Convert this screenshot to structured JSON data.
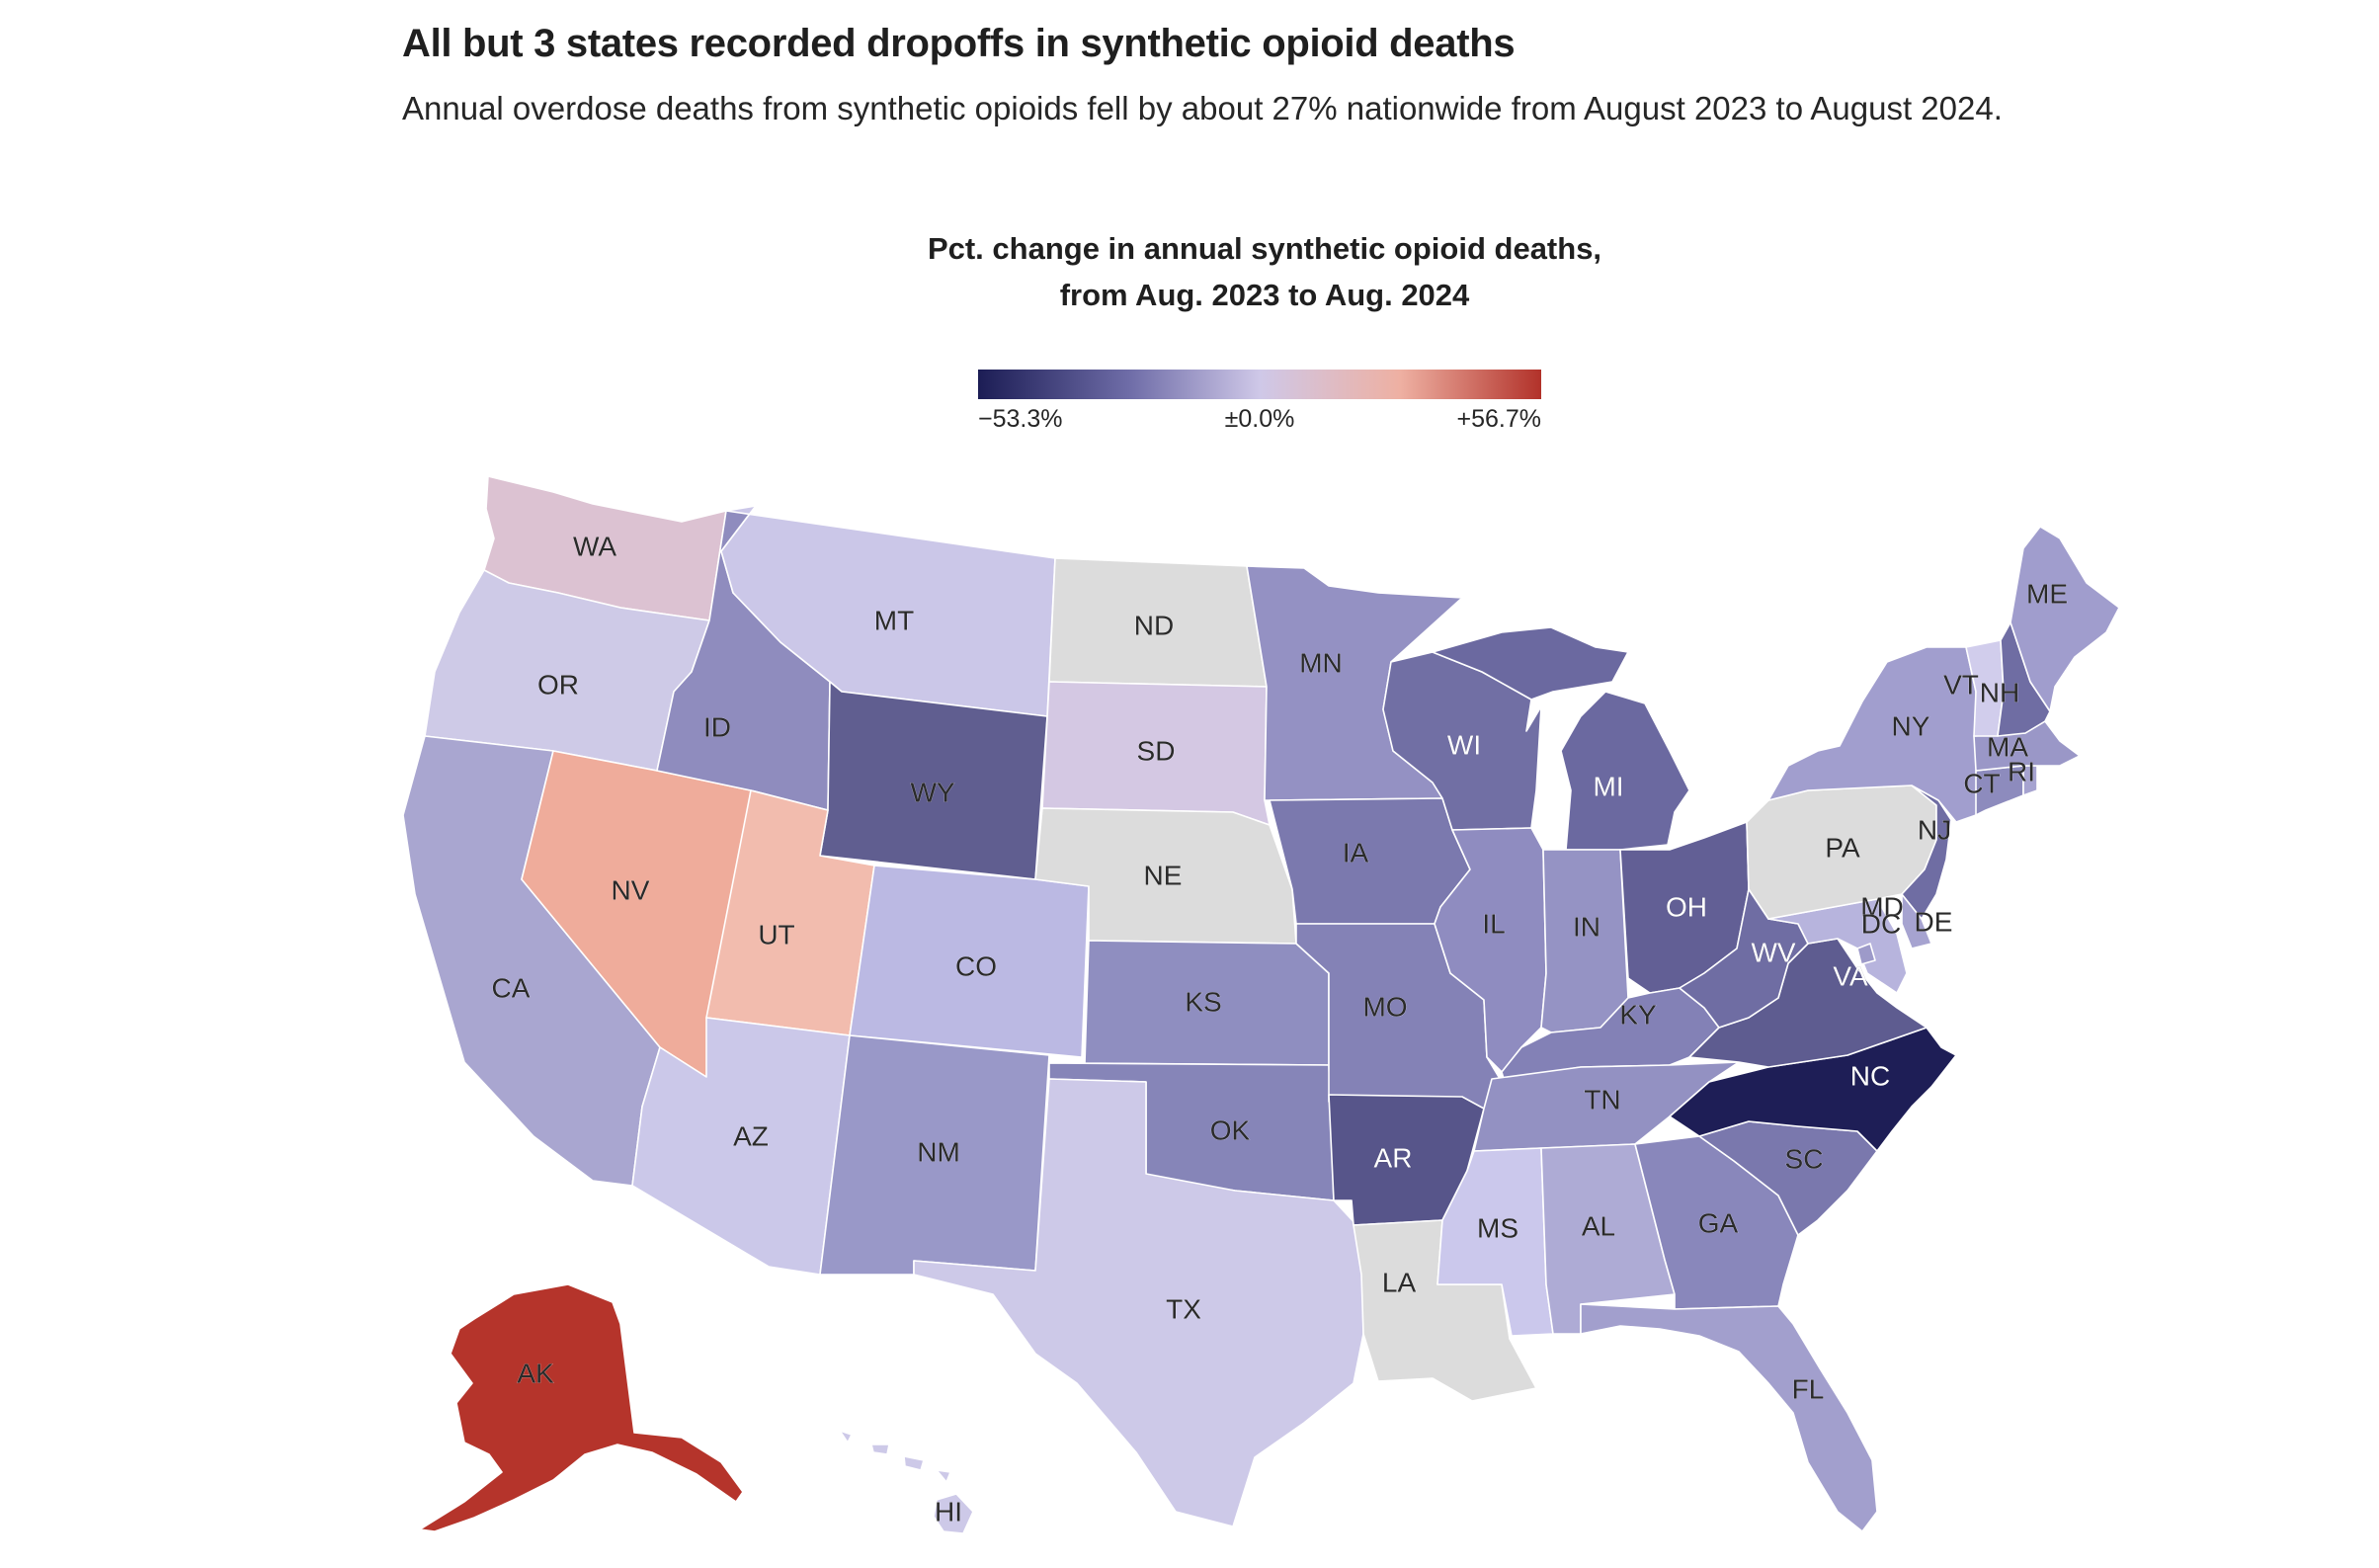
{
  "header": {
    "title": "All but 3 states recorded dropoffs in synthetic opioid deaths",
    "subtitle": "Annual overdose deaths from synthetic opioids fell by about 27% nationwide from August 2023 to August 2024."
  },
  "legend": {
    "title": "Pct. change in annual synthetic opioid deaths, from Aug. 2023 to Aug. 2024",
    "min_label": "−53.3%",
    "mid_label": "±0.0%",
    "max_label": "+56.7%",
    "scale_min": -53.3,
    "scale_max": 56.7,
    "colors": {
      "low": "#1c1d55",
      "mid": "#cfc8e8",
      "high": "#b2322a",
      "no_data": "#dcdcdc"
    }
  },
  "states": [
    {
      "id": "WA",
      "label": "WA",
      "color": "#dcc2d2"
    },
    {
      "id": "OR",
      "label": "OR",
      "color": "#cecae7"
    },
    {
      "id": "CA",
      "label": "CA",
      "color": "#a9a6d0"
    },
    {
      "id": "NV",
      "label": "NV",
      "color": "#efac9b"
    },
    {
      "id": "ID",
      "label": "ID",
      "color": "#8f8cbe"
    },
    {
      "id": "MT",
      "label": "MT",
      "color": "#cbc7e8"
    },
    {
      "id": "WY",
      "label": "WY",
      "color": "#605e90"
    },
    {
      "id": "UT",
      "label": "UT",
      "color": "#f2bcae"
    },
    {
      "id": "AZ",
      "label": "AZ",
      "color": "#cbc8e9"
    },
    {
      "id": "CO",
      "label": "CO",
      "color": "#bbb9e3"
    },
    {
      "id": "NM",
      "label": "NM",
      "color": "#9998c8"
    },
    {
      "id": "ND",
      "label": "ND",
      "color": "#dcdcdc"
    },
    {
      "id": "SD",
      "label": "SD",
      "color": "#d4c8e3"
    },
    {
      "id": "NE",
      "label": "NE",
      "color": "#dcdcdc"
    },
    {
      "id": "KS",
      "label": "KS",
      "color": "#8f8ec0"
    },
    {
      "id": "OK",
      "label": "OK",
      "color": "#8685b8"
    },
    {
      "id": "TX",
      "label": "TX",
      "color": "#cdc9e8"
    },
    {
      "id": "MN",
      "label": "MN",
      "color": "#9491c3"
    },
    {
      "id": "IA",
      "label": "IA",
      "color": "#7b79ae"
    },
    {
      "id": "MO",
      "label": "MO",
      "color": "#8482b6"
    },
    {
      "id": "AR",
      "label": "AR",
      "color": "#57558a"
    },
    {
      "id": "LA",
      "label": "LA",
      "color": "#dcdcdc"
    },
    {
      "id": "WI",
      "label": "WI",
      "color": "#716fa4"
    },
    {
      "id": "IL",
      "label": "IL",
      "color": "#8f8cc0"
    },
    {
      "id": "MI",
      "label": "MI",
      "color": "#6b69a0"
    },
    {
      "id": "IN",
      "label": "IN",
      "color": "#9593c4"
    },
    {
      "id": "OH",
      "label": "OH",
      "color": "#625f95"
    },
    {
      "id": "KY",
      "label": "KY",
      "color": "#8381b6"
    },
    {
      "id": "TN",
      "label": "TN",
      "color": "#9391c2"
    },
    {
      "id": "MS",
      "label": "MS",
      "color": "#cbc8ec"
    },
    {
      "id": "AL",
      "label": "AL",
      "color": "#aeabd5"
    },
    {
      "id": "GA",
      "label": "GA",
      "color": "#8987bb"
    },
    {
      "id": "FL",
      "label": "FL",
      "color": "#a29fcd"
    },
    {
      "id": "SC",
      "label": "SC",
      "color": "#7a78ad"
    },
    {
      "id": "NC",
      "label": "NC",
      "color": "#1e1e56"
    },
    {
      "id": "VA",
      "label": "VA",
      "color": "#5e5c90"
    },
    {
      "id": "WV",
      "label": "WV",
      "color": "#6f6da3"
    },
    {
      "id": "MD",
      "label": "MD",
      "color": "#b7b4dd"
    },
    {
      "id": "DC",
      "label": "DC",
      "color": "#9d9ac9"
    },
    {
      "id": "DE",
      "label": "DE",
      "color": "#a6a3d0"
    },
    {
      "id": "PA",
      "label": "PA",
      "color": "#dcdcdc"
    },
    {
      "id": "NJ",
      "label": "NJ",
      "color": "#6f6da3"
    },
    {
      "id": "NY",
      "label": "NY",
      "color": "#a19ece"
    },
    {
      "id": "CT",
      "label": "CT",
      "color": "#8d8bbd"
    },
    {
      "id": "RI",
      "label": "RI",
      "color": "#a6a3d0"
    },
    {
      "id": "MA",
      "label": "MA",
      "color": "#9a97c7"
    },
    {
      "id": "VT",
      "label": "VT",
      "color": "#d1cdec"
    },
    {
      "id": "NH",
      "label": "NH",
      "color": "#6f6da3"
    },
    {
      "id": "ME",
      "label": "ME",
      "color": "#a09dcd"
    },
    {
      "id": "AK",
      "label": "AK",
      "color": "#b5342b"
    },
    {
      "id": "HI",
      "label": "HI",
      "color": "#cdc9e8"
    }
  ]
}
